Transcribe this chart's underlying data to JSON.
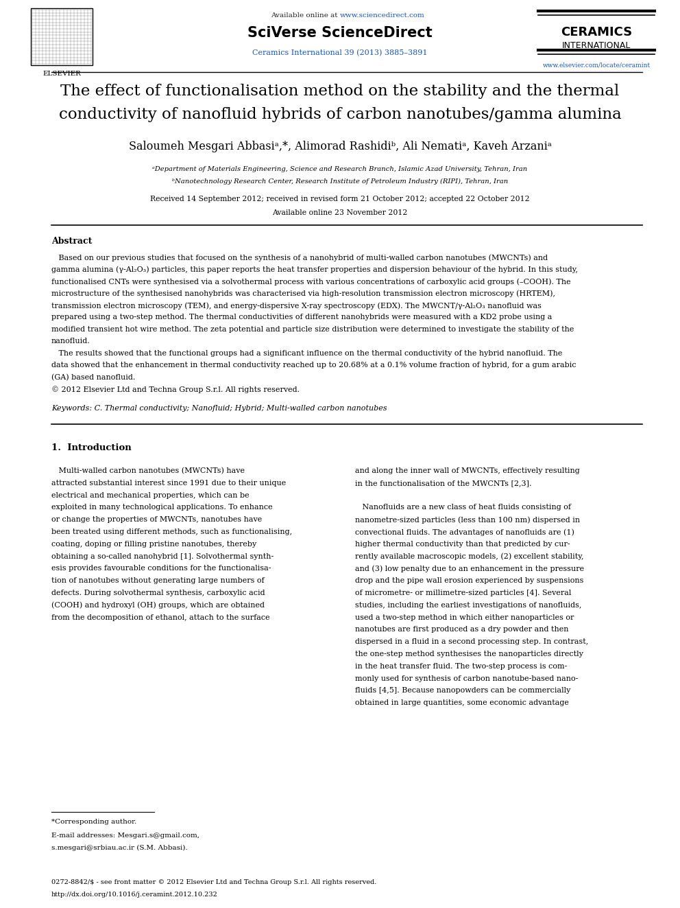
{
  "bg_color": "#ffffff",
  "page_width": 9.92,
  "page_height": 13.23,
  "header_available_text": "Available online at ",
  "header_url": "www.sciencedirect.com",
  "header_sciverse": "SciVerse ScienceDirect",
  "header_journal_blue": "Ceramics International 39 (2013) 3885–3891",
  "header_ceramics": "CERAMICS",
  "header_international": "INTERNATIONAL",
  "header_elsevier_url": "www.elsevier.com/locate/ceramint",
  "title_line1": "The effect of functionalisation method on the stability and the thermal",
  "title_line2": "conductivity of nanofluid hybrids of carbon nanotubes/gamma alumina",
  "authors": "Saloumeh Mesgari Abbasiᵃ,*, Alimorad Rashidiᵇ, Ali Nematiᵃ, Kaveh Arzaniᵃ",
  "affil_a": "ᵃDepartment of Materials Engineering, Science and Research Branch, Islamic Azad University, Tehran, Iran",
  "affil_b": "ᵇNanotechnology Research Center, Research Institute of Petroleum Industry (RIPI), Tehran, Iran",
  "dates": "Received 14 September 2012; received in revised form 21 October 2012; accepted 22 October 2012",
  "available_online": "Available online 23 November 2012",
  "abstract_title": "Abstract",
  "abstract_lines": [
    "   Based on our previous studies that focused on the synthesis of a nanohybrid of multi-walled carbon nanotubes (MWCNTs) and",
    "gamma alumina (γ-Al₂O₃) particles, this paper reports the heat transfer properties and dispersion behaviour of the hybrid. In this study,",
    "functionalised CNTs were synthesised via a solvothermal process with various concentrations of carboxylic acid groups (–COOH). The",
    "microstructure of the synthesised nanohybrids was characterised via high-resolution transmission electron microscopy (HRTEM),",
    "transmission electron microscopy (TEM), and energy-dispersive X-ray spectroscopy (EDX). The MWCNT/γ-Al₂O₃ nanofluid was",
    "prepared using a two-step method. The thermal conductivities of different nanohybrids were measured with a KD2 probe using a",
    "modified transient hot wire method. The zeta potential and particle size distribution were determined to investigate the stability of the",
    "nanofluid.",
    "   The results showed that the functional groups had a significant influence on the thermal conductivity of the hybrid nanofluid. The",
    "data showed that the enhancement in thermal conductivity reached up to 20.68% at a 0.1% volume fraction of hybrid, for a gum arabic",
    "(GA) based nanofluid.",
    "© 2012 Elsevier Ltd and Techna Group S.r.l. All rights reserved."
  ],
  "keywords": "Keywords: C. Thermal conductivity; Nanofluid; Hybrid; Multi-walled carbon nanotubes",
  "intro_heading": "1.  Introduction",
  "intro_col1_lines": [
    "   Multi-walled carbon nanotubes (MWCNTs) have",
    "attracted substantial interest since 1991 due to their unique",
    "electrical and mechanical properties, which can be",
    "exploited in many technological applications. To enhance",
    "or change the properties of MWCNTs, nanotubes have",
    "been treated using different methods, such as functionalising,",
    "coating, doping or filling pristine nanotubes, thereby",
    "obtaining a so-called nanohybrid [1]. Solvothermal synth-",
    "esis provides favourable conditions for the functionalisа-",
    "tion of nanotubes without generating large numbers of",
    "defects. During solvothermal synthesis, carboxylic acid",
    "(COOH) and hydroxyl (OH) groups, which are obtained",
    "from the decomposition of ethanol, attach to the surface"
  ],
  "intro_col2_lines": [
    "and along the inner wall of MWCNTs, effectively resulting",
    "in the functionalisation of the MWCNTs [2,3].",
    "",
    "   Nanofluids are a new class of heat fluids consisting of",
    "nanometre-sized particles (less than 100 nm) dispersed in",
    "convectional fluids. The advantages of nanofluids are (1)",
    "higher thermal conductivity than that predicted by cur-",
    "rently available macroscopic models, (2) excellent stability,",
    "and (3) low penalty due to an enhancement in the pressure",
    "drop and the pipe wall erosion experienced by suspensions",
    "of micrometre- or millimetre-sized particles [4]. Several",
    "studies, including the earliest investigations of nanofluids,",
    "used a two-step method in which either nanoparticles or",
    "nanotubes are first produced as a dry powder and then",
    "dispersed in a fluid in a second processing step. In contrast,",
    "the one-step method synthesises the nanoparticles directly",
    "in the heat transfer fluid. The two-step process is com-",
    "monly used for synthesis of carbon nanotube-based nano-",
    "fluids [4,5]. Because nanopowders can be commercially",
    "obtained in large quantities, some economic advantage"
  ],
  "footnote_star": "*Corresponding author.",
  "footnote_email1": "E-mail addresses: Mesgari.s@gmail.com,",
  "footnote_email2": "s.mesgari@srbiau.ac.ir (S.M. Abbasi).",
  "footer_issn": "0272-8842/$ - see front matter © 2012 Elsevier Ltd and Techna Group S.r.l. All rights reserved.",
  "footer_doi": "http://dx.doi.org/10.1016/j.ceramint.2012.10.232",
  "color_blue": "#1a00cc",
  "color_link": "#1155cc",
  "color_black": "#000000",
  "color_dark": "#222222"
}
